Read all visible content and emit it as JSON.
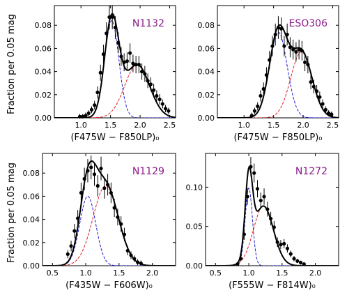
{
  "figure": {
    "ylabel": "Fraction per 0.05 mag",
    "colors": {
      "data": "#000000",
      "gauss_blue": "#1f1fd6",
      "gauss_red": "#e01f1f",
      "title": "#8b1a8b"
    }
  },
  "chart_data": [
    {
      "type": "scatter",
      "title": "N1132",
      "xlabel": "(F475W − F850LP)₀",
      "xlim": [
        0.55,
        2.6
      ],
      "ylim": [
        0,
        0.097
      ],
      "xticks": [
        1.0,
        1.5,
        2.0,
        2.5
      ],
      "yticks": [
        0.0,
        0.02,
        0.04,
        0.06,
        0.08
      ],
      "xtick_labels": [
        "1.0",
        "1.5",
        "2.0",
        "2.5"
      ],
      "ytick_labels": [
        "0.00",
        "0.02",
        "0.04",
        "0.06",
        "0.08"
      ],
      "points": [
        [
          0.98,
          0.001
        ],
        [
          1.03,
          0.001
        ],
        [
          1.08,
          0.002
        ],
        [
          1.13,
          0.004
        ],
        [
          1.18,
          0.007
        ],
        [
          1.23,
          0.011
        ],
        [
          1.28,
          0.022
        ],
        [
          1.33,
          0.039
        ],
        [
          1.38,
          0.055
        ],
        [
          1.43,
          0.073
        ],
        [
          1.48,
          0.087
        ],
        [
          1.53,
          0.087
        ],
        [
          1.58,
          0.078
        ],
        [
          1.63,
          0.065
        ],
        [
          1.68,
          0.053
        ],
        [
          1.73,
          0.048
        ],
        [
          1.78,
          0.049
        ],
        [
          1.83,
          0.056
        ],
        [
          1.88,
          0.047
        ],
        [
          1.93,
          0.046
        ],
        [
          1.98,
          0.046
        ],
        [
          2.03,
          0.04
        ],
        [
          2.08,
          0.038
        ],
        [
          2.13,
          0.032
        ],
        [
          2.18,
          0.029
        ],
        [
          2.23,
          0.024
        ],
        [
          2.28,
          0.019
        ],
        [
          2.33,
          0.016
        ],
        [
          2.38,
          0.012
        ],
        [
          2.43,
          0.008
        ],
        [
          2.48,
          0.006
        ]
      ],
      "gauss1": {
        "amp": 0.084,
        "mu": 1.52,
        "sigma": 0.12
      },
      "gauss2": {
        "amp": 0.046,
        "mu": 1.95,
        "sigma": 0.21
      }
    },
    {
      "type": "scatter",
      "title": "ESO306",
      "xlabel": "(F475W − F850LP)₀",
      "xlim": [
        0.55,
        2.6
      ],
      "ylim": [
        0,
        0.097
      ],
      "xticks": [
        1.0,
        1.5,
        2.0,
        2.5
      ],
      "yticks": [
        0.0,
        0.02,
        0.04,
        0.06,
        0.08
      ],
      "xtick_labels": [
        "1.0",
        "1.5",
        "2.0",
        "2.5"
      ],
      "ytick_labels": [
        "0.00",
        "0.02",
        "0.04",
        "0.06",
        "0.08"
      ],
      "points": [
        [
          1.13,
          0.002
        ],
        [
          1.18,
          0.006
        ],
        [
          1.23,
          0.01
        ],
        [
          1.28,
          0.019
        ],
        [
          1.33,
          0.025
        ],
        [
          1.38,
          0.037
        ],
        [
          1.43,
          0.05
        ],
        [
          1.48,
          0.062
        ],
        [
          1.53,
          0.072
        ],
        [
          1.58,
          0.078
        ],
        [
          1.63,
          0.077
        ],
        [
          1.68,
          0.062
        ],
        [
          1.73,
          0.072
        ],
        [
          1.78,
          0.061
        ],
        [
          1.83,
          0.059
        ],
        [
          1.88,
          0.057
        ],
        [
          1.93,
          0.059
        ],
        [
          1.98,
          0.058
        ],
        [
          2.03,
          0.048
        ],
        [
          2.08,
          0.046
        ],
        [
          2.13,
          0.031
        ],
        [
          2.18,
          0.027
        ],
        [
          2.23,
          0.023
        ],
        [
          2.28,
          0.018
        ],
        [
          2.33,
          0.012
        ],
        [
          2.38,
          0.007
        ],
        [
          2.43,
          0.004
        ],
        [
          2.48,
          0.003
        ]
      ],
      "gauss1": {
        "amp": 0.074,
        "mu": 1.58,
        "sigma": 0.15
      },
      "gauss2": {
        "amp": 0.057,
        "mu": 1.97,
        "sigma": 0.18
      }
    },
    {
      "type": "scatter",
      "title": "N1129",
      "xlabel": "(F435W − F606W)₀",
      "xlim": [
        0.35,
        2.35
      ],
      "ylim": [
        0,
        0.097
      ],
      "xticks": [
        0.5,
        1.0,
        1.5,
        2.0
      ],
      "yticks": [
        0.0,
        0.02,
        0.04,
        0.06,
        0.08
      ],
      "xtick_labels": [
        "0.5",
        "1.0",
        "1.5",
        "2.0"
      ],
      "ytick_labels": [
        "0.00",
        "0.02",
        "0.04",
        "0.06",
        "0.08"
      ],
      "points": [
        [
          0.73,
          0.01
        ],
        [
          0.78,
          0.017
        ],
        [
          0.83,
          0.03
        ],
        [
          0.88,
          0.041
        ],
        [
          0.93,
          0.063
        ],
        [
          0.98,
          0.075
        ],
        [
          1.03,
          0.082
        ],
        [
          1.08,
          0.085
        ],
        [
          1.13,
          0.079
        ],
        [
          1.18,
          0.069
        ],
        [
          1.23,
          0.084
        ],
        [
          1.28,
          0.067
        ],
        [
          1.33,
          0.07
        ],
        [
          1.38,
          0.063
        ],
        [
          1.43,
          0.05
        ],
        [
          1.48,
          0.042
        ],
        [
          1.53,
          0.036
        ],
        [
          1.58,
          0.027
        ],
        [
          1.63,
          0.013
        ],
        [
          1.68,
          0.009
        ],
        [
          1.73,
          0.006
        ],
        [
          1.78,
          0.003
        ],
        [
          1.83,
          0.002
        ]
      ],
      "gauss1": {
        "amp": 0.06,
        "mu": 1.03,
        "sigma": 0.12
      },
      "gauss2": {
        "amp": 0.069,
        "mu": 1.3,
        "sigma": 0.19
      }
    },
    {
      "type": "scatter",
      "title": "N1272",
      "xlabel": "(F555W − F814W)₀",
      "xlim": [
        0.35,
        2.35
      ],
      "ylim": [
        0,
        0.143
      ],
      "xticks": [
        0.5,
        1.0,
        1.5,
        2.0
      ],
      "yticks": [
        0.0,
        0.05,
        0.1
      ],
      "xtick_labels": [
        "0.5",
        "1.0",
        "1.5",
        "2.0"
      ],
      "ytick_labels": [
        "0.00",
        "0.05",
        "0.10"
      ],
      "points": [
        [
          0.83,
          0.002
        ],
        [
          0.88,
          0.009
        ],
        [
          0.93,
          0.04
        ],
        [
          0.98,
          0.088
        ],
        [
          1.03,
          0.126
        ],
        [
          1.08,
          0.118
        ],
        [
          1.13,
          0.098
        ],
        [
          1.18,
          0.083
        ],
        [
          1.23,
          0.088
        ],
        [
          1.28,
          0.072
        ],
        [
          1.33,
          0.06
        ],
        [
          1.38,
          0.049
        ],
        [
          1.43,
          0.03
        ],
        [
          1.48,
          0.027
        ],
        [
          1.53,
          0.028
        ],
        [
          1.58,
          0.022
        ],
        [
          1.63,
          0.015
        ],
        [
          1.68,
          0.009
        ],
        [
          1.73,
          0.006
        ],
        [
          1.78,
          0.004
        ],
        [
          1.83,
          0.002
        ]
      ],
      "gauss1": {
        "amp": 0.099,
        "mu": 1.0,
        "sigma": 0.055
      },
      "gauss2": {
        "amp": 0.076,
        "mu": 1.22,
        "sigma": 0.15
      }
    }
  ]
}
